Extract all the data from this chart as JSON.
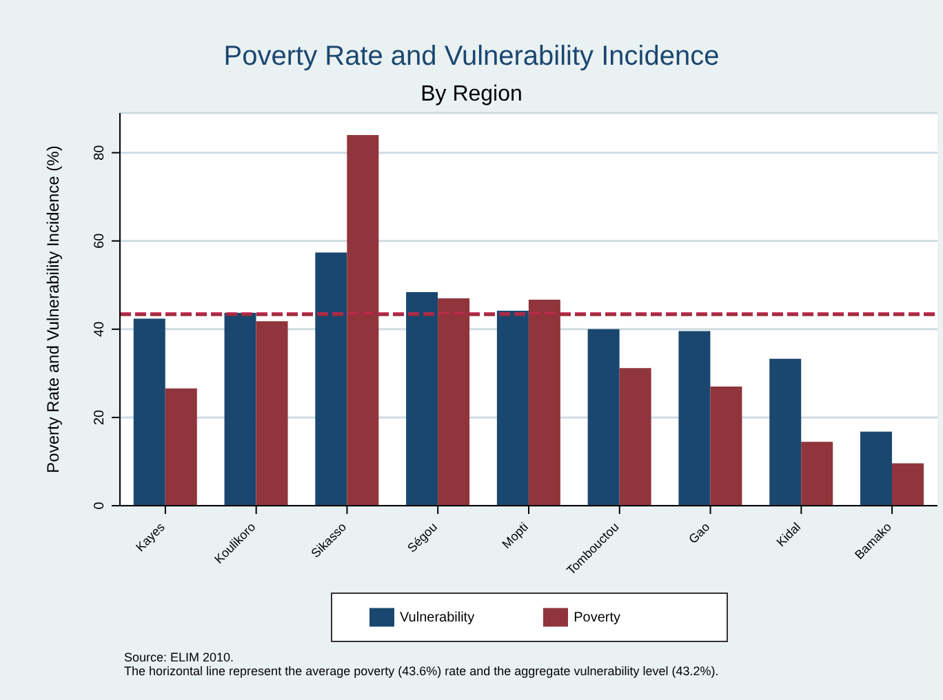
{
  "chart_data": {
    "type": "bar",
    "title": "Poverty Rate and Vulnerability Incidence",
    "subtitle": "By Region",
    "ylabel": "Poverty Rate and Vulnerability Incidence (%)",
    "categories": [
      "Kayes",
      "Koulikoro",
      "Sikasso",
      "Ségou",
      "Mopti",
      "Tombouctou",
      "Gao",
      "Kidal",
      "Bamako"
    ],
    "series": [
      {
        "name": "Vulnerability",
        "color": "#1a476f",
        "values": [
          42.4,
          43.7,
          57.4,
          48.4,
          44.2,
          40.0,
          39.6,
          33.3,
          16.8
        ]
      },
      {
        "name": "Poverty",
        "color": "#90353b",
        "values": [
          26.6,
          41.8,
          84.0,
          47.0,
          46.7,
          31.2,
          27.0,
          14.5,
          9.6
        ]
      }
    ],
    "ylim": [
      0,
      89
    ],
    "yticks": [
      0,
      20,
      40,
      60,
      80
    ],
    "grid": "y",
    "legend": "bottom",
    "ref_lines": [
      {
        "axis": "y",
        "value": 43.6,
        "color": "#c0284f",
        "line_style": "dashed"
      },
      {
        "axis": "y",
        "value": 43.2,
        "color": "#9b2d3c",
        "line_style": "dashed"
      }
    ],
    "annotations": [
      "Source: ELIM 2010.",
      "The horizontal line represent the average poverty (43.6%) rate and the aggregate vulnerability level (43.2%)."
    ]
  }
}
